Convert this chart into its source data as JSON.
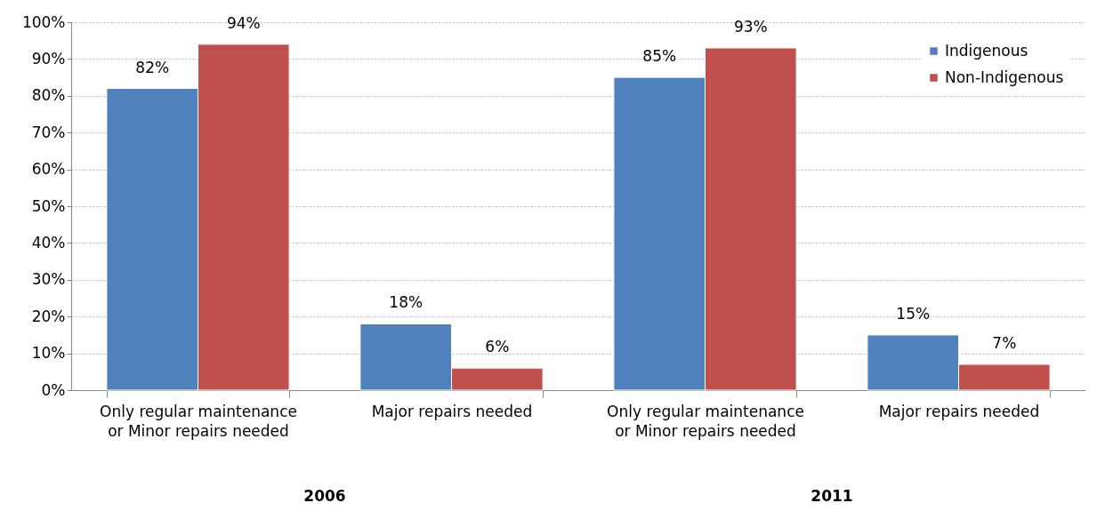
{
  "chart_data": {
    "type": "bar",
    "categories": [
      "Only regular maintenance\nor Minor repairs needed",
      "Major repairs needed",
      "Only regular maintenance\nor Minor repairs needed",
      "Major repairs needed"
    ],
    "series": [
      {
        "name": "Indigenous",
        "color": "#4f81bd",
        "values": [
          82,
          18,
          85,
          15
        ],
        "value_labels": [
          "82%",
          "18%",
          "85%",
          "15%"
        ]
      },
      {
        "name": "Non-Indigenous",
        "color": "#c0504d",
        "values": [
          94,
          6,
          93,
          7
        ],
        "value_labels": [
          "94%",
          "6%",
          "93%",
          "7%"
        ]
      }
    ],
    "ylim": [
      0,
      100
    ],
    "yticks": [
      {
        "value": 0,
        "label": "0%"
      },
      {
        "value": 10,
        "label": "10%"
      },
      {
        "value": 20,
        "label": "20%"
      },
      {
        "value": 30,
        "label": "30%"
      },
      {
        "value": 40,
        "label": "40%"
      },
      {
        "value": 50,
        "label": "50%"
      },
      {
        "value": 60,
        "label": "60%"
      },
      {
        "value": 70,
        "label": "70%"
      },
      {
        "value": 80,
        "label": "80%"
      },
      {
        "value": 90,
        "label": "90%"
      },
      {
        "value": 100,
        "label": "100%"
      }
    ],
    "grid": "y",
    "legend": "top right",
    "annotations": [
      "2006",
      "2011"
    ]
  }
}
